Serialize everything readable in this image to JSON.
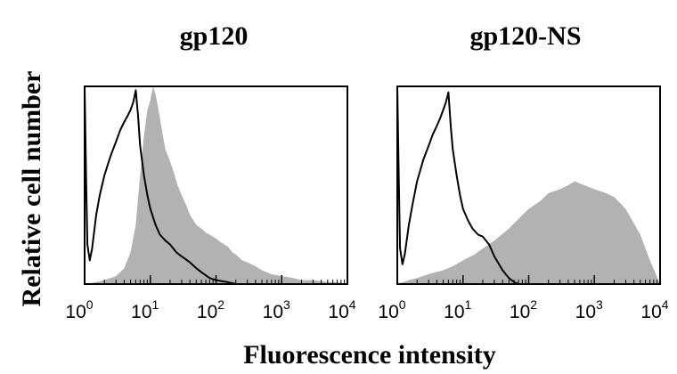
{
  "figure": {
    "ylabel": "Relative cell number",
    "xlabel": "Fluorescence intensity"
  },
  "chart_data": [
    {
      "type": "area",
      "title": "gp120",
      "x_scale": "log",
      "xlim": [
        1,
        10000
      ],
      "x_ticks": [
        {
          "base": "10",
          "exp": "0"
        },
        {
          "base": "10",
          "exp": "1"
        },
        {
          "base": "10",
          "exp": "2"
        },
        {
          "base": "10",
          "exp": "3"
        },
        {
          "base": "10",
          "exp": "4"
        }
      ],
      "ylim": [
        0,
        100
      ],
      "grid": false,
      "series": [
        {
          "style": "filled",
          "color": "#b2b2b2",
          "x": [
            1,
            1.5,
            2,
            3,
            4,
            5,
            6,
            7,
            8,
            9,
            10,
            11,
            12,
            13,
            14,
            15,
            17,
            20,
            23,
            26,
            30,
            35,
            40,
            50,
            60,
            70,
            80,
            100,
            120,
            150,
            180,
            200,
            250,
            300,
            400,
            500,
            700,
            1000,
            1500,
            2000,
            3000,
            5000,
            7000,
            10000
          ],
          "y": [
            0,
            1,
            2,
            4,
            8,
            16,
            30,
            55,
            75,
            88,
            93,
            100,
            96,
            90,
            84,
            78,
            68,
            62,
            56,
            50,
            45,
            40,
            35,
            30,
            28,
            26,
            25,
            23,
            21,
            19,
            16,
            15,
            12,
            11,
            9,
            7,
            5,
            4,
            3,
            2,
            2,
            1,
            1,
            0
          ]
        },
        {
          "style": "outline",
          "color": "#000000",
          "x": [
            1,
            1.05,
            1.1,
            1.2,
            1.3,
            1.5,
            1.7,
            2,
            2.5,
            3,
            3.5,
            4,
            4.5,
            5,
            5.5,
            6,
            6.5,
            7,
            8,
            9,
            10,
            12,
            14,
            17,
            20,
            25,
            30,
            40,
            50,
            60,
            80,
            100,
            150,
            200,
            10000
          ],
          "y": [
            100,
            55,
            20,
            12,
            18,
            35,
            45,
            55,
            65,
            72,
            78,
            82,
            85,
            88,
            92,
            98,
            85,
            70,
            55,
            45,
            38,
            30,
            25,
            22,
            20,
            16,
            14,
            11,
            8,
            6,
            3,
            2,
            1,
            0,
            0
          ]
        }
      ]
    },
    {
      "type": "area",
      "title": "gp120-NS",
      "x_scale": "log",
      "xlim": [
        1,
        10000
      ],
      "x_ticks": [
        {
          "base": "10",
          "exp": "0"
        },
        {
          "base": "10",
          "exp": "1"
        },
        {
          "base": "10",
          "exp": "2"
        },
        {
          "base": "10",
          "exp": "3"
        },
        {
          "base": "10",
          "exp": "4"
        }
      ],
      "ylim": [
        0,
        100
      ],
      "grid": false,
      "series": [
        {
          "style": "filled",
          "color": "#b2b2b2",
          "x": [
            1,
            1.5,
            2,
            3,
            5,
            7,
            10,
            15,
            20,
            30,
            50,
            70,
            100,
            150,
            200,
            300,
            400,
            500,
            700,
            1000,
            1500,
            2000,
            3000,
            5000,
            7000,
            10000
          ],
          "y": [
            0,
            2,
            3,
            5,
            7,
            9,
            12,
            15,
            18,
            22,
            28,
            33,
            38,
            42,
            46,
            48,
            50,
            52,
            50,
            48,
            46,
            44,
            38,
            25,
            12,
            0
          ]
        },
        {
          "style": "outline",
          "color": "#000000",
          "x": [
            1,
            1.05,
            1.1,
            1.2,
            1.3,
            1.5,
            1.7,
            2,
            2.5,
            3,
            3.5,
            4,
            4.5,
            5,
            5.5,
            6,
            6.5,
            7,
            8,
            9,
            10,
            12,
            14,
            17,
            20,
            25,
            30,
            40,
            50,
            60,
            70,
            80,
            100,
            10000
          ],
          "y": [
            100,
            55,
            18,
            10,
            15,
            30,
            40,
            52,
            63,
            70,
            76,
            80,
            84,
            88,
            92,
            97,
            80,
            68,
            55,
            45,
            38,
            32,
            28,
            25,
            24,
            20,
            14,
            7,
            3,
            1,
            0,
            0,
            0,
            0
          ]
        }
      ]
    }
  ]
}
